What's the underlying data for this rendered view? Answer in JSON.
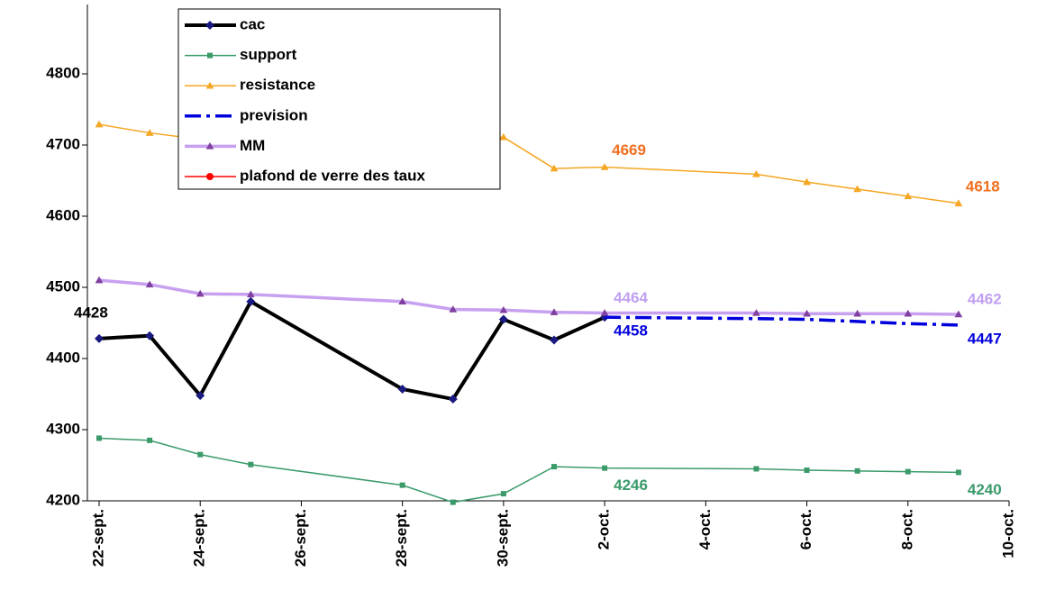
{
  "chart_data": {
    "type": "line",
    "x": [
      "22-sept.",
      "23-sept.",
      "24-sept.",
      "25-sept.",
      "28-sept.",
      "29-sept.",
      "30-sept.",
      "1-oct.",
      "2-oct.",
      "5-oct.",
      "6-oct.",
      "7-oct.",
      "8-oct.",
      "9-oct."
    ],
    "xlim": [
      "22-sept.",
      "10-oct."
    ],
    "xticks": [
      "22-sept.",
      "24-sept.",
      "26-sept.",
      "28-sept.",
      "30-sept.",
      "2-oct.",
      "4-oct.",
      "6-oct.",
      "8-oct.",
      "10-oct."
    ],
    "ylim": [
      4200,
      4800
    ],
    "yticks": [
      4200,
      4300,
      4400,
      4500,
      4600,
      4700,
      4800
    ],
    "legend": "top-left",
    "series": [
      {
        "name": "cac",
        "color": "#000000",
        "marker": "diamond",
        "marker_color": "#1a1a80",
        "style": "solid",
        "values": [
          4428,
          4432,
          4348,
          4480,
          4357,
          4343,
          4455,
          4426,
          4458,
          null,
          null,
          null,
          null,
          null
        ],
        "value_labels": [
          "4428",
          null,
          null,
          null,
          null,
          null,
          null,
          null,
          null,
          null,
          null,
          null,
          null,
          null
        ],
        "label_color": "#000000"
      },
      {
        "name": "support",
        "color": "#3a9a6a",
        "marker": "square",
        "marker_color": "#3a9a6a",
        "style": "solid",
        "values": [
          4288,
          4285,
          4265,
          4251,
          4222,
          4198,
          4210,
          4248,
          4246,
          4245,
          4243,
          4242,
          4241,
          4240
        ],
        "value_labels": [
          null,
          null,
          null,
          null,
          null,
          null,
          null,
          null,
          "4246",
          null,
          null,
          null,
          null,
          "4240"
        ],
        "label_color": "#3a9a6a"
      },
      {
        "name": "resistance",
        "color": "#f5a623",
        "marker": "triangle",
        "marker_color": "#f5a623",
        "style": "solid",
        "values": [
          4729,
          4717,
          4708,
          4705,
          4705,
          4708,
          4711,
          4667,
          4669,
          4659,
          4648,
          4638,
          4628,
          4618
        ],
        "value_labels": [
          null,
          null,
          null,
          null,
          null,
          null,
          null,
          null,
          "4669",
          null,
          null,
          null,
          null,
          "4618"
        ],
        "label_color": "#f07020"
      },
      {
        "name": "prevision",
        "color": "#0000dd",
        "marker": "none",
        "marker_color": "#0000dd",
        "style": "dashdot",
        "values": [
          null,
          null,
          null,
          null,
          null,
          null,
          null,
          null,
          4458,
          4456,
          4455,
          4452,
          4449,
          4447
        ],
        "value_labels": [
          null,
          null,
          null,
          null,
          null,
          null,
          null,
          null,
          "4458",
          null,
          null,
          null,
          null,
          "4447"
        ],
        "label_color": "#0000dd"
      },
      {
        "name": "MM",
        "color": "#c8a0f0",
        "marker": "triangle",
        "marker_color": "#8040a0",
        "style": "solid",
        "values": [
          4510,
          4504,
          4491,
          4490,
          4480,
          4469,
          4468,
          4465,
          4464,
          4464,
          4463,
          4463,
          4463,
          4462
        ],
        "value_labels": [
          null,
          null,
          null,
          null,
          null,
          null,
          null,
          null,
          "4464",
          null,
          null,
          null,
          null,
          "4462"
        ],
        "label_color": "#c0a0f0"
      },
      {
        "name": "plafond de verre des taux",
        "color": "#ff0000",
        "marker": "circle",
        "marker_color": "#ff0000",
        "style": "solid",
        "values": [
          null,
          null,
          null,
          null,
          null,
          null,
          null,
          null,
          null,
          null,
          null,
          null,
          null,
          null
        ]
      }
    ]
  }
}
